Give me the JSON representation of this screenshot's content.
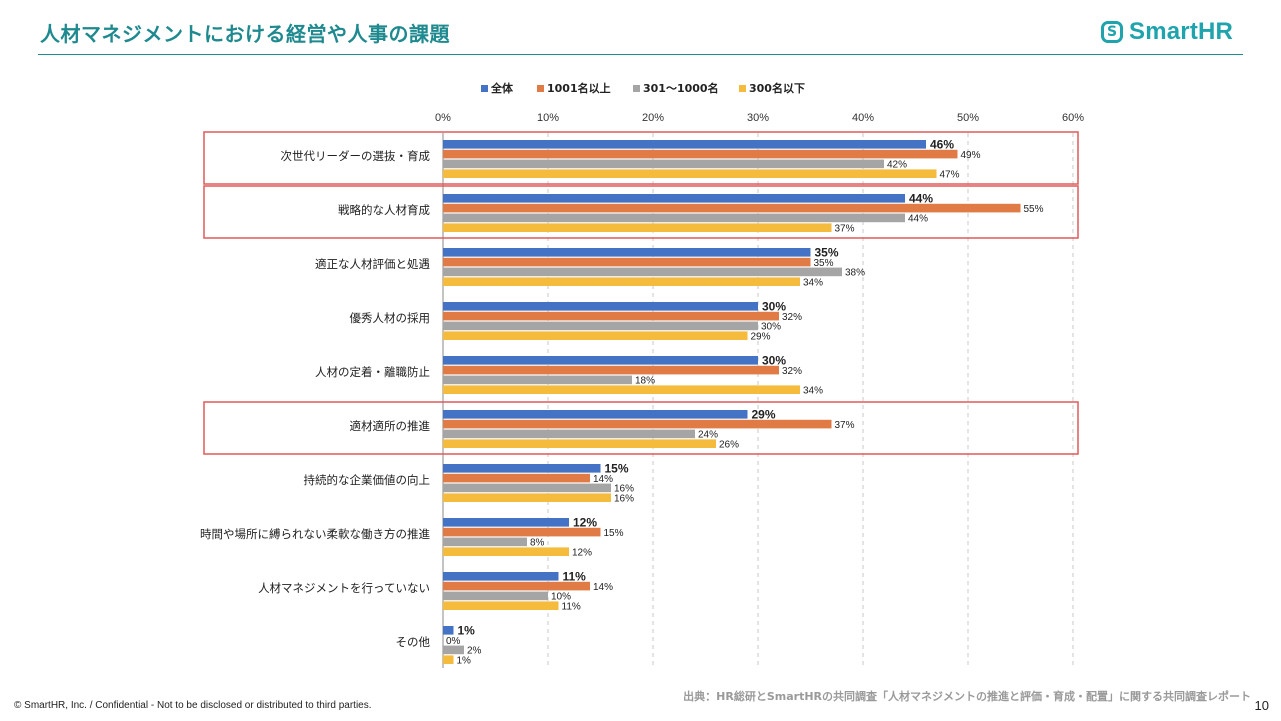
{
  "header": {
    "title": "人材マネジメントにおける経営や人事の課題",
    "logo_text": "SmartHR",
    "logo_icon": "s-badge-icon"
  },
  "footer": {
    "copyright": "© SmartHR, Inc. / Confidential - Not to be disclosed or distributed to third parties.",
    "source": "出典：HR総研とSmartHRの共同調査「人材マネジメントの推進と評価・育成・配置」に関する共同調査レポート",
    "page_number": "10"
  },
  "colors": {
    "accent": "#1e8a8f",
    "highlight_box": "#e05a5a",
    "series": [
      "#4472c4",
      "#e07b45",
      "#a5a5a5",
      "#f5bb3c"
    ]
  },
  "chart_data": {
    "type": "bar",
    "orientation": "horizontal",
    "title": "",
    "xlim": [
      0,
      60
    ],
    "xticks": [
      "0%",
      "10%",
      "20%",
      "30%",
      "40%",
      "50%",
      "60%"
    ],
    "legend_position": "top",
    "grid": true,
    "categories": [
      "次世代リーダーの選抜・育成",
      "戦略的な人材育成",
      "適正な人材評価と処遇",
      "優秀人材の採用",
      "人材の定着・離職防止",
      "適材適所の推進",
      "持続的な企業価値の向上",
      "時間や場所に縛られない柔軟な働き方の推進",
      "人材マネジメントを行っていない",
      "その他"
    ],
    "highlighted": [
      0,
      1,
      5
    ],
    "series": [
      {
        "name": "全体",
        "values": [
          46,
          44,
          35,
          30,
          30,
          29,
          15,
          12,
          11,
          1
        ],
        "labels": [
          "46%",
          "44%",
          "35%",
          "30%",
          "30%",
          "29%",
          "15%",
          "12%",
          "11%",
          "1%"
        ],
        "bold": true
      },
      {
        "name": "1001名以上",
        "values": [
          49,
          55,
          35,
          32,
          32,
          37,
          14,
          15,
          14,
          0
        ],
        "labels": [
          "49%",
          "55%",
          "35%",
          "32%",
          "32%",
          "37%",
          "14%",
          "15%",
          "14%",
          "0%"
        ]
      },
      {
        "name": "301〜1000名",
        "values": [
          42,
          44,
          38,
          30,
          18,
          24,
          16,
          8,
          10,
          2
        ],
        "labels": [
          "42%",
          "44%",
          "38%",
          "30%",
          "18%",
          "24%",
          "16%",
          "8%",
          "10%",
          "2%"
        ]
      },
      {
        "name": "300名以下",
        "values": [
          47,
          37,
          34,
          29,
          34,
          26,
          16,
          12,
          11,
          1
        ],
        "labels": [
          "47%",
          "37%",
          "34%",
          "29%",
          "34%",
          "26%",
          "16%",
          "12%",
          "11%",
          "1%"
        ]
      }
    ]
  }
}
